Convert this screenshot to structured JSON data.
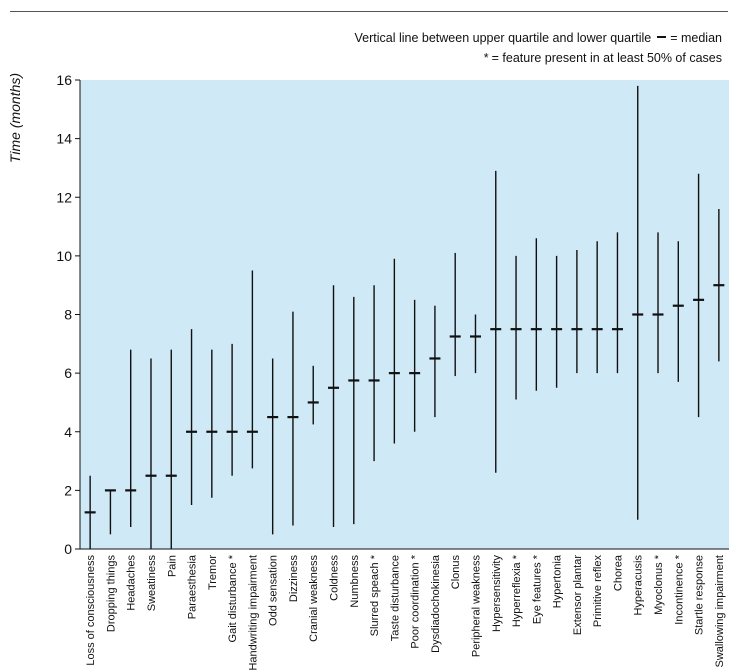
{
  "legend": {
    "range_text": "Vertical line between upper quartile and lower quartile",
    "median_text": "= median",
    "star_symbol": "*",
    "star_text": "= feature present in at least 50% of cases"
  },
  "chart_data": {
    "type": "range",
    "title": "",
    "xlabel": "",
    "ylabel": "Time (months)",
    "ylim": [
      0,
      16
    ],
    "yticks": [
      0,
      2,
      4,
      6,
      8,
      10,
      12,
      14,
      16
    ],
    "grid": false,
    "background_color": "#cfe9f6",
    "mark_color": "#111111",
    "features": [
      {
        "label": "Loss of consciousness",
        "lower": 0,
        "upper": 2.5,
        "median": 1.25
      },
      {
        "label": "Dropping things",
        "lower": 0.5,
        "upper": 2.0,
        "median": 2.0
      },
      {
        "label": "Headaches",
        "lower": 0.75,
        "upper": 6.8,
        "median": 2.0
      },
      {
        "label": "Sweatiness",
        "lower": 0,
        "upper": 6.5,
        "median": 2.5
      },
      {
        "label": "Pain",
        "lower": 0,
        "upper": 6.8,
        "median": 2.5
      },
      {
        "label": "Paraesthesia",
        "lower": 1.5,
        "upper": 7.5,
        "median": 4.0
      },
      {
        "label": "Tremor",
        "lower": 1.75,
        "upper": 6.8,
        "median": 4.0
      },
      {
        "label": "Gait disturbance *",
        "lower": 2.5,
        "upper": 7.0,
        "median": 4.0
      },
      {
        "label": "Handwriting impairment",
        "lower": 2.75,
        "upper": 9.5,
        "median": 4.0
      },
      {
        "label": "Odd sensation",
        "lower": 0.5,
        "upper": 6.5,
        "median": 4.5
      },
      {
        "label": "Dizziness",
        "lower": 0.8,
        "upper": 8.1,
        "median": 4.5
      },
      {
        "label": "Cranial weakness",
        "lower": 4.25,
        "upper": 6.25,
        "median": 5.0
      },
      {
        "label": "Coldness",
        "lower": 0.75,
        "upper": 9.0,
        "median": 5.5
      },
      {
        "label": "Numbness",
        "lower": 0.85,
        "upper": 8.6,
        "median": 5.75
      },
      {
        "label": "Slurred speach *",
        "lower": 3.0,
        "upper": 9.0,
        "median": 5.75
      },
      {
        "label": "Taste disturbance",
        "lower": 3.6,
        "upper": 9.9,
        "median": 6.0
      },
      {
        "label": "Poor coordination *",
        "lower": 4.0,
        "upper": 8.5,
        "median": 6.0
      },
      {
        "label": "Dysdiadochokinesia",
        "lower": 4.5,
        "upper": 8.3,
        "median": 6.5
      },
      {
        "label": "Clonus",
        "lower": 5.9,
        "upper": 10.1,
        "median": 7.25
      },
      {
        "label": "Peripheral weakness",
        "lower": 6.0,
        "upper": 8.0,
        "median": 7.25
      },
      {
        "label": "Hypersensitivity",
        "lower": 2.6,
        "upper": 12.9,
        "median": 7.5
      },
      {
        "label": "Hyperreflexia *",
        "lower": 5.1,
        "upper": 10.0,
        "median": 7.5
      },
      {
        "label": "Eye features *",
        "lower": 5.4,
        "upper": 10.6,
        "median": 7.5
      },
      {
        "label": "Hypertonia",
        "lower": 5.5,
        "upper": 10.0,
        "median": 7.5
      },
      {
        "label": "Extensor plantar",
        "lower": 6.0,
        "upper": 10.2,
        "median": 7.5
      },
      {
        "label": "Primitive reflex",
        "lower": 6.0,
        "upper": 10.5,
        "median": 7.5
      },
      {
        "label": "Chorea",
        "lower": 6.0,
        "upper": 10.8,
        "median": 7.5
      },
      {
        "label": "Hyperacusis",
        "lower": 1.0,
        "upper": 15.8,
        "median": 8.0
      },
      {
        "label": "Myoclonus *",
        "lower": 6.0,
        "upper": 10.8,
        "median": 8.0
      },
      {
        "label": "Incontinence *",
        "lower": 5.7,
        "upper": 10.5,
        "median": 8.3
      },
      {
        "label": "Startle response",
        "lower": 4.5,
        "upper": 12.8,
        "median": 8.5
      },
      {
        "label": "Swallowing impairment",
        "lower": 6.4,
        "upper": 11.6,
        "median": 9.0
      }
    ]
  }
}
